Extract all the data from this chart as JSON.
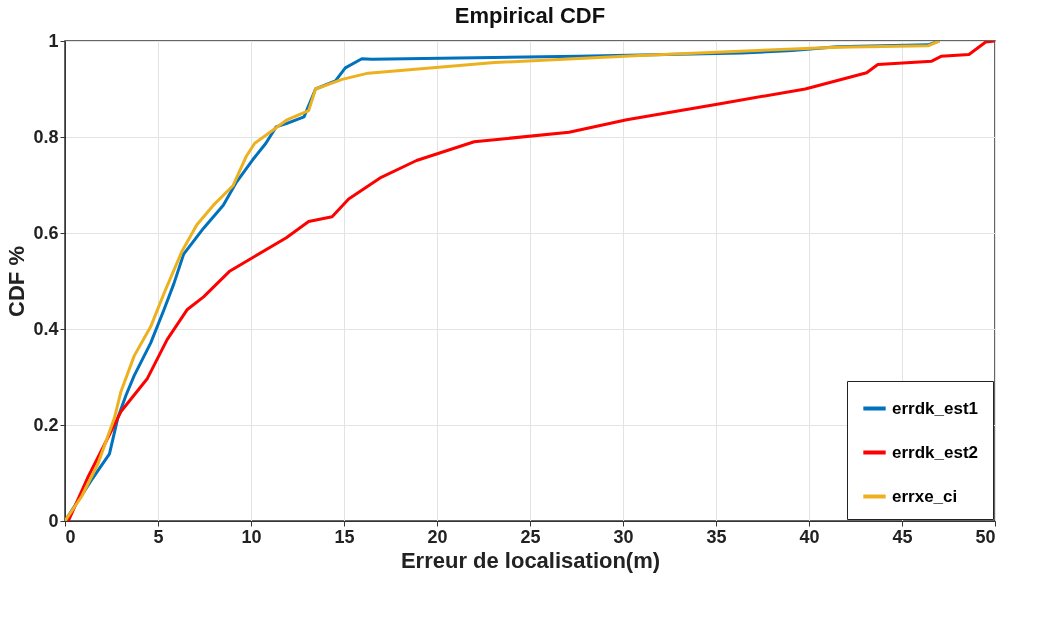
{
  "chart_data": {
    "type": "line",
    "title": "Empirical CDF",
    "xlabel": "Erreur de localisation(m)",
    "ylabel": "CDF %",
    "xlim": [
      0,
      50
    ],
    "xticks": [
      0,
      5,
      10,
      15,
      20,
      25,
      30,
      35,
      40,
      45,
      50
    ],
    "ylim": [
      0,
      1
    ],
    "yticks": [
      0,
      0.2,
      0.4,
      0.6,
      0.8,
      1
    ],
    "grid": true,
    "legend": "bottom right",
    "line_style": "solid",
    "marker": "none",
    "series": [
      {
        "name": "errdk_est1",
        "color": "#0072bd",
        "x": [
          0,
          1.42,
          2.39,
          2.84,
          3.28,
          3.72,
          4.61,
          5.32,
          5.85,
          6.38,
          7.45,
          8.51,
          9.22,
          10.1,
          10.8,
          11.35,
          11.9,
          12.85,
          13.47,
          14.54,
          15.07,
          15.96,
          16.5,
          27.6,
          36.4,
          39.1,
          41.5,
          46.4,
          47
        ],
        "values": [
          0,
          0.085,
          0.14,
          0.215,
          0.262,
          0.303,
          0.371,
          0.44,
          0.494,
          0.556,
          0.61,
          0.658,
          0.706,
          0.753,
          0.787,
          0.821,
          0.828,
          0.842,
          0.9,
          0.917,
          0.944,
          0.963,
          0.962,
          0.968,
          0.975,
          0.98,
          0.988,
          0.992,
          1.0
        ]
      },
      {
        "name": "errdk_est2",
        "color": "#ff0000",
        "x": [
          0.18,
          1.24,
          2.13,
          3.01,
          4.43,
          5.49,
          6.56,
          7.45,
          8.87,
          10.1,
          11.9,
          13.1,
          14.36,
          15.25,
          17.0,
          18.9,
          22.0,
          27.1,
          30.2,
          35.3,
          39.8,
          43.1,
          43.7,
          46.6,
          47.1,
          48.6,
          49.5,
          50
        ],
        "values": [
          0,
          0.092,
          0.16,
          0.228,
          0.297,
          0.378,
          0.44,
          0.467,
          0.521,
          0.549,
          0.59,
          0.624,
          0.634,
          0.671,
          0.716,
          0.751,
          0.79,
          0.81,
          0.836,
          0.87,
          0.9,
          0.934,
          0.951,
          0.958,
          0.968,
          0.972,
          0.998,
          1.0
        ]
      },
      {
        "name": "errxe_ci",
        "color": "#edb120",
        "x": [
          0,
          0.89,
          1.77,
          2.66,
          3.01,
          3.72,
          4.61,
          5.32,
          6.29,
          7.09,
          7.98,
          9.04,
          9.75,
          10.2,
          11.17,
          11.9,
          13.1,
          13.47,
          14.9,
          16.3,
          23.1,
          30.9,
          41.5,
          46.4,
          47
        ],
        "values": [
          0,
          0.051,
          0.119,
          0.215,
          0.27,
          0.344,
          0.405,
          0.474,
          0.562,
          0.617,
          0.658,
          0.699,
          0.76,
          0.787,
          0.814,
          0.835,
          0.855,
          0.9,
          0.92,
          0.933,
          0.955,
          0.97,
          0.987,
          0.99,
          1.0
        ]
      }
    ]
  }
}
